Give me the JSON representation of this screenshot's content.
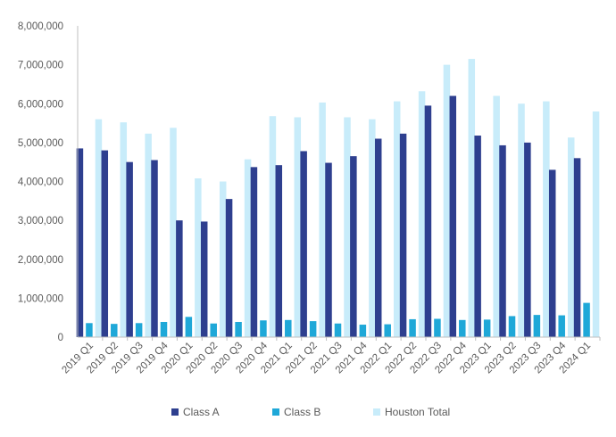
{
  "chart_data": {
    "type": "bar",
    "title": "",
    "xlabel": "",
    "ylabel": "",
    "ylim": [
      0,
      8000000
    ],
    "yticks": [
      0,
      1000000,
      2000000,
      3000000,
      4000000,
      5000000,
      6000000,
      7000000,
      8000000
    ],
    "ytick_labels": [
      "0",
      "1,000,000",
      "2,000,000",
      "3,000,000",
      "4,000,000",
      "5,000,000",
      "6,000,000",
      "7,000,000",
      "8,000,000"
    ],
    "grid": false,
    "legend_position": "bottom",
    "categories": [
      "2019 Q1",
      "2019 Q2",
      "2019 Q3",
      "2019 Q4",
      "2020 Q1",
      "2020 Q2",
      "2020 Q3",
      "2020 Q4",
      "2021 Q1",
      "2021 Q2",
      "2021 Q3",
      "2021 Q4",
      "2022 Q1",
      "2022 Q2",
      "2022 Q3",
      "2022 Q4",
      "2023 Q1",
      "2023 Q2",
      "2023 Q3",
      "2023 Q4",
      "2024 Q1"
    ],
    "series": [
      {
        "name": "Class A",
        "color": "#2e3f8f",
        "values": [
          4850000,
          4800000,
          4500000,
          4550000,
          3000000,
          2970000,
          3550000,
          4370000,
          4420000,
          4780000,
          4480000,
          4650000,
          5100000,
          5230000,
          5950000,
          6200000,
          5180000,
          4930000,
          5000000,
          4300000,
          4600000
        ]
      },
      {
        "name": "Class B",
        "color": "#1fa8d8",
        "values": [
          360000,
          340000,
          360000,
          390000,
          520000,
          350000,
          390000,
          430000,
          440000,
          410000,
          350000,
          320000,
          330000,
          460000,
          470000,
          440000,
          450000,
          540000,
          570000,
          560000,
          880000
        ]
      },
      {
        "name": "Houston Total",
        "color": "#c8ecfa",
        "values": [
          5600000,
          5520000,
          5230000,
          5380000,
          4080000,
          4000000,
          4570000,
          5680000,
          5650000,
          6030000,
          5650000,
          5600000,
          6060000,
          6320000,
          7000000,
          7150000,
          6200000,
          6000000,
          6060000,
          5130000,
          5800000
        ]
      }
    ]
  }
}
